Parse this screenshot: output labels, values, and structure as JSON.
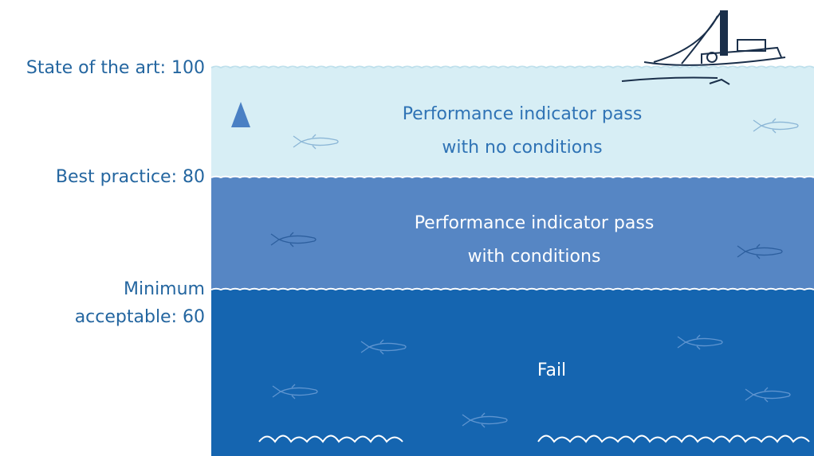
{
  "levels": [
    {
      "lines": [
        "State of the art: 100"
      ]
    },
    {
      "lines": [
        "Best practice: 80"
      ]
    },
    {
      "lines": [
        "Minimum",
        "acceptable: 60"
      ]
    }
  ],
  "bands": [
    {
      "lines": [
        "Performance indicator pass",
        "with no conditions"
      ]
    },
    {
      "lines": [
        "Performance indicator pass",
        "with conditions"
      ]
    },
    {
      "lines": [
        "Fail"
      ]
    }
  ]
}
